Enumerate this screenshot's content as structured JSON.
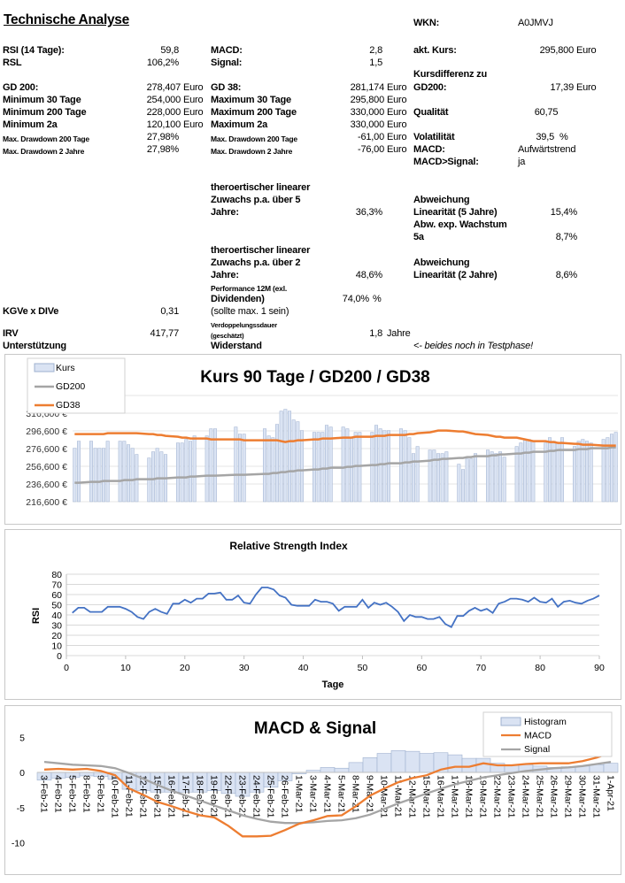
{
  "title": "Technische Analyse",
  "col1": {
    "rsi_label": "RSI (14 Tage):",
    "rsi": "59,8",
    "rsl_label": "RSL",
    "rsl": "106,2%",
    "gd200_label": "GD 200:",
    "gd200": "278,407",
    "min30_label": "Minimum 30 Tage",
    "min30": "254,000",
    "min200_label": "Minimum 200 Tage",
    "min200": "228,000",
    "min2a_label": "Minimum 2a",
    "min2a": "120,100",
    "dd200_label": "Max. Drawdown 200 Tage",
    "dd200": "27,98%",
    "dd2_label": "Max. Drawdown 2 Jahre",
    "dd2": "27,98%",
    "kgve_label": "KGVe x DIVe",
    "kgve": "0,31",
    "irv_label": "IRV",
    "irv": "417,77",
    "unterstuetzung_label": "Unterstützung"
  },
  "col2": {
    "macd_label": "MACD:",
    "macd": "2,8",
    "signal_label": "Signal:",
    "signal": "1,5",
    "gd38_label": "GD 38:",
    "gd38": "281,174",
    "max30_label": "Maximum 30 Tage",
    "max30": "295,800",
    "max200_label": "Maximum 200 Tage",
    "max200": "330,000",
    "max2a_label": "Maximum 2a",
    "max2a": "330,000",
    "dd200_label": "Max. Drawdown 200 Tage",
    "dd200": "-61,00",
    "dd2_label": "Max. Drawdown 2 Jahre",
    "dd2": "-76,00",
    "lin5_l1": "theroertischer linearer",
    "lin5_l2": "Zuwachs p.a. über 5",
    "lin5_l3": "Jahre:",
    "lin5": "36,3%",
    "lin2_l1": "theroertischer linearer",
    "lin2_l2": "Zuwachs p.a. über 2",
    "lin2_l3": "Jahre:",
    "lin2": "48,6%",
    "perf_l1": "Performance 12M (exl.",
    "perf_l2": "Dividenden)",
    "perf": "74,0%",
    "perf_unit": "%",
    "kgve_note": "(sollte max. 1 sein)",
    "verd_l1": "Verdoppelungssdauer",
    "verd_l2": "(geschätzt)",
    "verd": "1,8",
    "verd_unit": "Jahre",
    "widerstand_label": "Widerstand"
  },
  "col3": {
    "wkn_label": "WKN:",
    "wkn": "A0JMVJ",
    "kurs_label": "akt. Kurs:",
    "kurs": "295,800",
    "kdiff_l1": "Kursdifferenz zu",
    "kdiff_l2": "GD200:",
    "kdiff": "17,39",
    "qual_label": "Qualität",
    "qual": "60,75",
    "vola_label": "Volatilität",
    "vola": "39,5",
    "vola_unit": "%",
    "macd_label": "MACD:",
    "macd": "Aufwärtstrend",
    "macdsig_label": "MACD>Signal:",
    "macdsig": "ja",
    "abw5_l1": "Abweichung",
    "abw5_l2": "Linearität (5 Jahre)",
    "abw5": "15,4%",
    "abwexp_l1": "Abw. exp. Wachstum",
    "abwexp_l2": "5a",
    "abwexp": "8,7%",
    "abw2_l1": "Abweichung",
    "abw2_l2": "Linearität (2 Jahre)",
    "abw2": "8,6%",
    "test_note": "<- beides noch in Testphase!"
  },
  "unit": "Euro",
  "chart_data": [
    {
      "type": "bar+line",
      "title": "Kurs 90 Tage / GD200 / GD38",
      "legend": [
        "Kurs",
        "GD200",
        "GD38"
      ],
      "legend_position": "top-left",
      "yticks": [
        "216,600 €",
        "236,600 €",
        "256,600 €",
        "276,600 €",
        "296,600 €",
        "316,600 €"
      ],
      "ylim": [
        216.6,
        336.6
      ],
      "grid": true,
      "colors": {
        "kurs": "#dae3f3",
        "kurs_border": "#9fb1cf",
        "gd200": "#a5a5a5",
        "gd38": "#ed7d31"
      },
      "kurs": [
        277,
        285,
        null,
        null,
        285,
        277,
        277,
        277,
        285,
        null,
        null,
        285,
        285,
        281,
        277,
        270,
        null,
        null,
        266,
        273,
        277,
        273,
        270,
        null,
        null,
        283,
        283,
        287,
        285,
        291,
        null,
        null,
        291,
        299,
        299,
        null,
        null,
        null,
        null,
        301,
        293,
        293,
        null,
        null,
        null,
        null,
        299,
        291,
        289,
        304,
        319,
        321,
        319,
        309,
        307,
        297,
        null,
        null,
        295,
        295,
        295,
        303,
        301,
        null,
        null,
        301,
        299,
        289,
        295,
        295,
        null,
        null,
        295,
        303,
        299,
        297,
        297,
        null,
        null,
        299,
        297,
        289,
        271,
        279,
        null,
        null,
        275,
        275,
        271,
        271,
        273,
        null,
        null,
        259,
        253,
        265,
        265,
        271,
        null,
        null,
        275,
        273,
        271,
        273,
        267,
        null,
        null,
        279,
        283,
        287,
        287,
        285,
        null,
        null,
        283,
        289,
        285,
        283,
        289,
        null,
        null,
        279,
        285,
        287,
        285,
        283,
        null,
        null,
        287,
        289,
        293,
        295
      ],
      "gd200": [
        238,
        238,
        239,
        239,
        239,
        240,
        240,
        240,
        241,
        241,
        241,
        242,
        242,
        242,
        243,
        243,
        243,
        244,
        244,
        244,
        245,
        245,
        246,
        246,
        246,
        247,
        247,
        247,
        248,
        248,
        249,
        249,
        250,
        250,
        251,
        251,
        252,
        252,
        253,
        253,
        254,
        254,
        255,
        255,
        256,
        256,
        257,
        257,
        258,
        258,
        259,
        259,
        260,
        260,
        261,
        261,
        262,
        262,
        263,
        264,
        264,
        265,
        265,
        266,
        266,
        267,
        267,
        268,
        268,
        269,
        269,
        270,
        270,
        271,
        271,
        272,
        272,
        273,
        273,
        274,
        274,
        275,
        275,
        275,
        276,
        276,
        276,
        277,
        277,
        277,
        278,
        278
      ],
      "gd38": [
        293,
        293,
        293,
        293,
        293,
        293,
        294,
        294,
        294,
        294,
        294,
        294,
        293,
        293,
        292,
        292,
        291,
        290,
        289,
        289,
        288,
        288,
        288,
        287,
        287,
        287,
        287,
        286,
        286,
        286,
        286,
        286,
        285,
        284,
        285,
        285,
        286,
        286,
        287,
        287,
        288,
        288,
        288,
        289,
        289,
        289,
        290,
        290,
        290,
        291,
        291,
        291,
        292,
        292,
        292,
        293,
        293,
        294,
        295,
        296,
        297,
        297,
        297,
        296,
        296,
        295,
        294,
        293,
        292,
        291,
        290,
        290,
        289,
        289,
        288,
        287,
        286,
        285,
        285,
        284,
        284,
        283,
        283,
        282,
        282,
        281,
        281,
        281,
        280,
        280,
        280,
        280
      ]
    },
    {
      "type": "line",
      "title": "Relative Strength Index",
      "xlabel": "Tage",
      "ylabel": "RSI",
      "xlim": [
        0,
        90
      ],
      "ylim": [
        0,
        80
      ],
      "xticks": [
        0,
        10,
        20,
        30,
        40,
        50,
        60,
        70,
        80,
        90
      ],
      "yticks": [
        0,
        10,
        20,
        30,
        40,
        50,
        60,
        70,
        80
      ],
      "grid": true,
      "color": "#4472c4",
      "x_start": 1,
      "values": [
        42,
        47,
        47,
        43,
        43,
        43,
        48,
        48,
        48,
        46,
        43,
        38,
        36,
        43,
        46,
        43,
        41,
        51,
        51,
        55,
        52,
        56,
        56,
        61,
        61,
        62,
        55,
        55,
        59,
        52,
        51,
        60,
        67,
        67,
        65,
        59,
        57,
        50,
        49,
        49,
        49,
        55,
        53,
        53,
        51,
        44,
        48,
        48,
        48,
        55,
        47,
        52,
        50,
        52,
        48,
        43,
        34,
        40,
        38,
        38,
        36,
        36,
        38,
        31,
        28,
        39,
        39,
        44,
        47,
        44,
        46,
        42,
        51,
        53,
        56,
        56,
        55,
        53,
        57,
        53,
        52,
        56,
        48,
        53,
        54,
        52,
        51,
        54,
        56,
        59
      ]
    },
    {
      "type": "bar+line",
      "title": "MACD & Signal",
      "legend": [
        "Histogram",
        "MACD",
        "Signal"
      ],
      "legend_position": "top-right",
      "ylim": [
        -10,
        5
      ],
      "yticks": [
        -10,
        -5,
        0,
        5
      ],
      "colors": {
        "histogram": "#dae3f3",
        "histogram_border": "#9fb1cf",
        "macd": "#ed7d31",
        "signal": "#a5a5a5"
      },
      "categories": [
        "3-Feb-21",
        "4-Feb-21",
        "5-Feb-21",
        "8-Feb-21",
        "9-Feb-21",
        "10-Feb-21",
        "11-Feb-21",
        "12-Feb-21",
        "15-Feb-21",
        "16-Feb-21",
        "17-Feb-21",
        "18-Feb-21",
        "19-Feb-21",
        "22-Feb-21",
        "23-Feb-21",
        "24-Feb-21",
        "25-Feb-21",
        "26-Feb-21",
        "1-Mar-21",
        "3-Mar-21",
        "4-Mar-21",
        "5-Mar-21",
        "8-Mar-21",
        "9-Mar-21",
        "10-Mar-21",
        "11-Mar-21",
        "12-Mar-21",
        "15-Mar-21",
        "16-Mar-21",
        "17-Mar-21",
        "18-Mar-21",
        "19-Mar-21",
        "22-Mar-21",
        "23-Mar-21",
        "24-Mar-21",
        "25-Mar-21",
        "26-Mar-21",
        "29-Mar-21",
        "30-Mar-21",
        "31-Mar-21",
        "1-Apr-21"
      ],
      "histogram": [
        -1.1,
        -0.8,
        -0.7,
        -0.5,
        -0.6,
        -1.0,
        -2.4,
        -2.6,
        -2.8,
        -2.8,
        -2.8,
        -2.8,
        -2.6,
        -3.0,
        -3.4,
        -2.8,
        -2.1,
        -1.2,
        -0.2,
        0.3,
        0.7,
        0.6,
        1.4,
        2.1,
        2.7,
        3.1,
        3.0,
        2.7,
        2.8,
        2.5,
        2.0,
        2.0,
        1.3,
        1.1,
        1.1,
        0.9,
        0.7,
        0.8,
        0.9,
        1.1,
        1.3
      ],
      "macd": [
        0.4,
        0.5,
        0.4,
        0.5,
        0.2,
        -0.4,
        -2.3,
        -3.2,
        -4.2,
        -4.8,
        -5.5,
        -6.1,
        -6.4,
        -7.6,
        -9.1,
        -9.1,
        -9.0,
        -8.2,
        -7.3,
        -6.8,
        -6.2,
        -6.1,
        -4.8,
        -3.3,
        -2.3,
        -1.4,
        -0.8,
        -0.4,
        0.4,
        0.8,
        0.8,
        1.3,
        1.0,
        1.0,
        1.2,
        1.3,
        1.3,
        1.3,
        1.6,
        2.1,
        2.8
      ],
      "signal": [
        1.5,
        1.3,
        1.1,
        1.0,
        0.9,
        0.6,
        -0.1,
        -0.9,
        -1.8,
        -2.6,
        -3.3,
        -4.0,
        -4.7,
        -5.4,
        -6.1,
        -6.6,
        -7.0,
        -7.2,
        -7.2,
        -7.1,
        -6.9,
        -6.8,
        -6.5,
        -6.0,
        -5.2,
        -4.4,
        -3.7,
        -3.0,
        -2.3,
        -1.7,
        -1.2,
        -0.7,
        -0.4,
        -0.1,
        0.2,
        0.4,
        0.6,
        0.7,
        0.9,
        1.2,
        1.5
      ]
    }
  ]
}
